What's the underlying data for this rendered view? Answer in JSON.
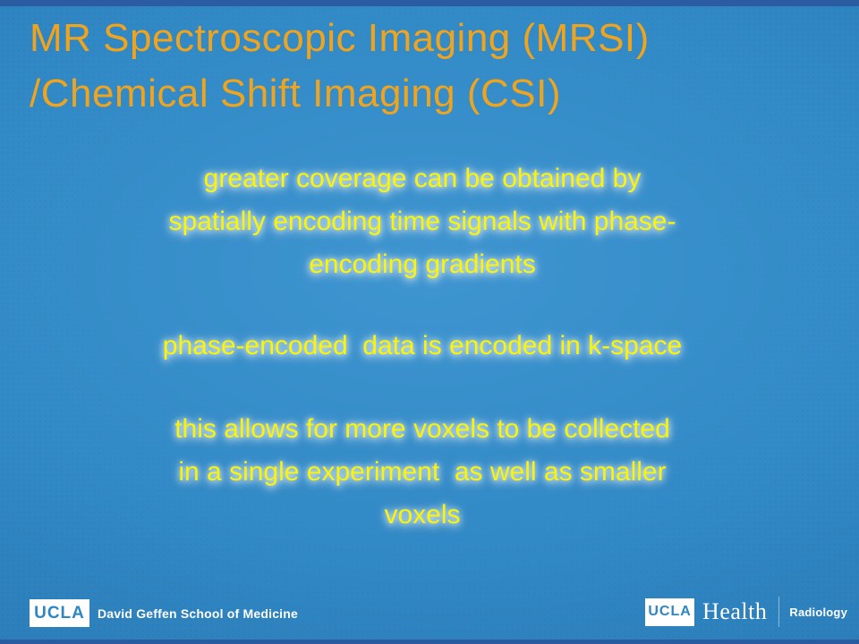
{
  "slide": {
    "title": {
      "lines": [
        "MR Spectroscopic Imaging (MRSI)",
        "/Chemical Shift Imaging (CSI)"
      ]
    },
    "body": {
      "paragraphs": [
        {
          "lines": [
            "greater coverage can be obtained by",
            "spatially encoding time signals with phase-",
            "encoding gradients"
          ]
        },
        {
          "lines": [
            "phase-encoded  data is encoded in k-space"
          ]
        },
        {
          "lines": [
            "this allows for more voxels to be collected",
            "in a single experiment  as well as smaller",
            "voxels"
          ]
        }
      ]
    },
    "footer": {
      "left": {
        "logo_text": "UCLA",
        "label": "David Geffen School of Medicine"
      },
      "right": {
        "logo_text": "UCLA",
        "brand": "Health",
        "department": "Radiology"
      }
    },
    "colors": {
      "background": "#3189C5",
      "accent_bars": "#2B5BA1",
      "title_text": "#F0A41E",
      "body_text": "#FCF400",
      "footer_text": "#FFFFFF",
      "ucla_logo_box": "#FFFFFF",
      "ucla_logo_letters": "#2E86C3"
    }
  }
}
